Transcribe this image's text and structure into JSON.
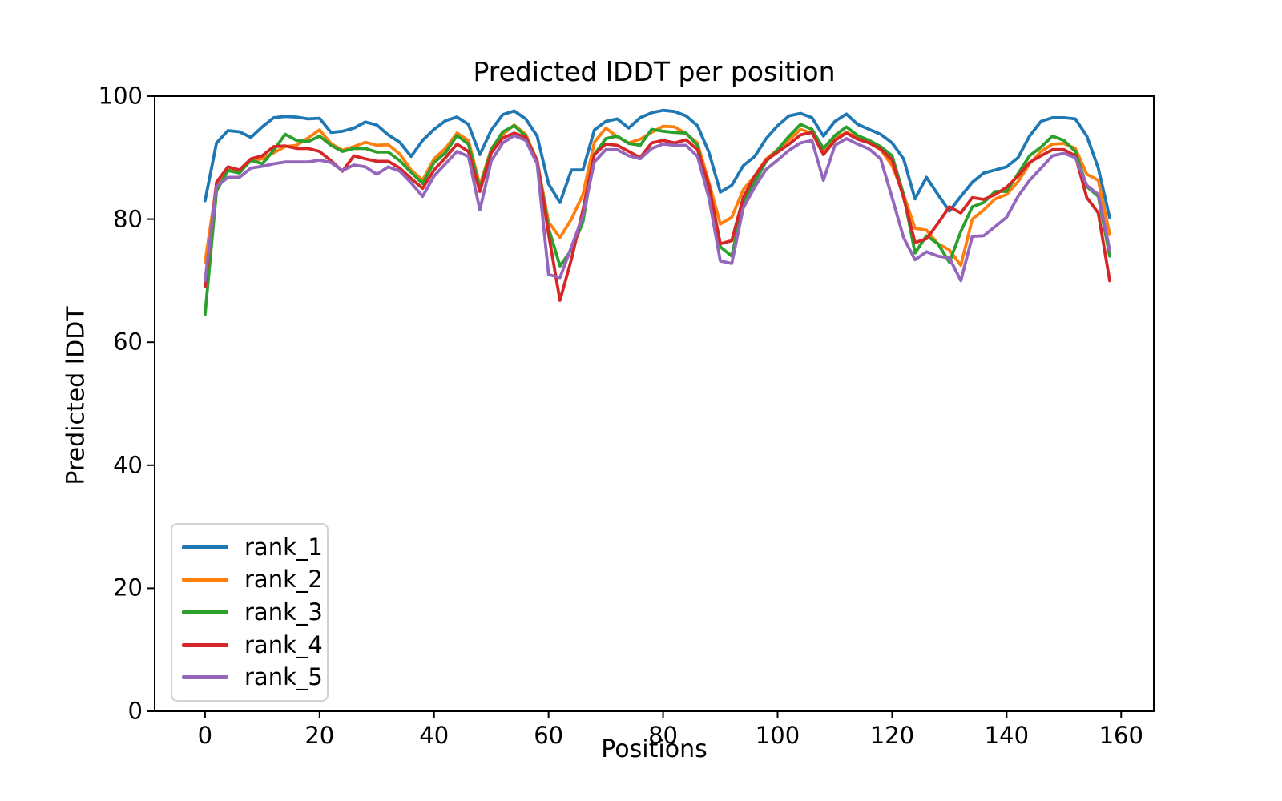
{
  "figure": {
    "title": "Predicted lDDT per position",
    "xlabel": "Positions",
    "ylabel": "Predicted lDDT"
  },
  "chart_data": {
    "type": "line",
    "title": "Predicted lDDT per position",
    "xlabel": "Positions",
    "ylabel": "Predicted lDDT",
    "xlim": [
      -8.8,
      165.7
    ],
    "ylim": [
      0,
      100
    ],
    "xticks": [
      0,
      20,
      40,
      60,
      80,
      100,
      120,
      140,
      160
    ],
    "yticks": [
      0,
      20,
      40,
      60,
      80,
      100
    ],
    "grid": false,
    "legend_position": "lower left",
    "line_width": 3.8,
    "x": [
      0,
      2,
      4,
      6,
      8,
      10,
      12,
      14,
      16,
      18,
      20,
      22,
      24,
      26,
      28,
      30,
      32,
      34,
      36,
      38,
      40,
      42,
      44,
      46,
      48,
      50,
      52,
      54,
      56,
      58,
      60,
      62,
      64,
      66,
      68,
      70,
      72,
      74,
      76,
      78,
      80,
      82,
      84,
      86,
      88,
      90,
      92,
      94,
      96,
      98,
      100,
      102,
      104,
      106,
      108,
      110,
      112,
      114,
      116,
      118,
      120,
      122,
      124,
      126,
      128,
      130,
      132,
      134,
      136,
      138,
      140,
      142,
      144,
      146,
      148,
      150,
      152,
      154,
      156,
      158
    ],
    "series": [
      {
        "name": "rank_1",
        "color": "#1f77b4",
        "values": [
          83.0,
          92.4,
          94.4,
          94.2,
          93.3,
          95.0,
          96.5,
          96.7,
          96.6,
          96.3,
          96.4,
          94.1,
          94.3,
          94.8,
          95.8,
          95.3,
          93.7,
          92.5,
          90.2,
          92.8,
          94.6,
          96.0,
          96.6,
          95.4,
          90.5,
          94.5,
          97.0,
          97.6,
          96.3,
          93.5,
          85.7,
          82.7,
          88.0,
          88.0,
          94.5,
          95.9,
          96.3,
          94.8,
          96.5,
          97.3,
          97.7,
          97.5,
          96.8,
          95.2,
          90.9,
          84.4,
          85.5,
          88.7,
          90.2,
          93.1,
          95.2,
          96.8,
          97.2,
          96.5,
          93.5,
          95.9,
          97.1,
          95.4,
          94.6,
          93.8,
          92.4,
          89.8,
          83.3,
          86.8,
          84.0,
          81.3,
          83.7,
          86.0,
          87.5,
          88.0,
          88.5,
          90.0,
          93.5,
          95.9,
          96.5,
          96.5,
          96.3,
          93.5,
          88.3,
          80.2
        ]
      },
      {
        "name": "rank_2",
        "color": "#ff7f0e",
        "values": [
          73.0,
          85.5,
          88.0,
          88.0,
          89.5,
          89.8,
          90.8,
          91.8,
          92.0,
          93.2,
          94.5,
          92.3,
          91.2,
          91.8,
          92.5,
          92.0,
          92.1,
          90.6,
          88.0,
          86.3,
          89.8,
          91.5,
          94.0,
          92.8,
          85.5,
          91.5,
          93.8,
          95.3,
          93.8,
          89.5,
          79.5,
          77.0,
          80.0,
          84.0,
          92.5,
          94.8,
          93.4,
          92.4,
          93.0,
          94.1,
          95.1,
          95.0,
          93.9,
          92.4,
          86.0,
          79.2,
          80.3,
          84.8,
          87.0,
          89.8,
          91.3,
          92.9,
          94.6,
          94.0,
          91.0,
          93.2,
          94.1,
          93.3,
          92.4,
          91.3,
          88.7,
          84.0,
          78.5,
          78.2,
          76.0,
          75.0,
          72.5,
          80.0,
          81.5,
          83.3,
          84.0,
          86.1,
          89.0,
          91.0,
          92.2,
          92.3,
          91.5,
          87.3,
          86.3,
          77.5
        ]
      },
      {
        "name": "rank_3",
        "color": "#2ca02c",
        "values": [
          64.5,
          84.6,
          87.9,
          87.5,
          89.6,
          89.0,
          91.2,
          93.8,
          92.8,
          92.6,
          93.5,
          92.0,
          91.0,
          91.5,
          91.5,
          90.9,
          90.9,
          89.5,
          87.6,
          85.8,
          89.2,
          90.8,
          93.6,
          92.2,
          85.0,
          91.3,
          94.2,
          95.2,
          93.5,
          89.3,
          78.5,
          72.4,
          75.0,
          79.5,
          90.5,
          93.1,
          93.5,
          92.3,
          92.0,
          94.6,
          94.3,
          94.1,
          94.0,
          92.0,
          84.0,
          75.5,
          74.0,
          82.6,
          86.0,
          89.4,
          91.3,
          93.5,
          95.4,
          94.6,
          91.5,
          93.6,
          95.0,
          93.6,
          92.8,
          91.8,
          90.3,
          84.0,
          74.5,
          77.3,
          76.0,
          73.0,
          78.0,
          82.0,
          82.7,
          84.5,
          84.5,
          87.4,
          90.3,
          91.7,
          93.5,
          92.8,
          91.0,
          85.3,
          83.7,
          74.0
        ]
      },
      {
        "name": "rank_4",
        "color": "#d62728",
        "values": [
          69.0,
          86.0,
          88.5,
          88.0,
          89.8,
          90.3,
          91.8,
          91.9,
          91.5,
          91.5,
          91.0,
          89.5,
          87.8,
          90.3,
          89.8,
          89.4,
          89.4,
          88.3,
          86.6,
          85.0,
          88.0,
          90.0,
          92.2,
          91.0,
          84.5,
          90.8,
          93.2,
          94.0,
          93.3,
          89.5,
          77.5,
          66.8,
          73.5,
          81.5,
          90.5,
          92.2,
          92.0,
          91.0,
          90.0,
          92.4,
          92.8,
          92.4,
          92.9,
          91.3,
          85.5,
          76.0,
          76.5,
          83.5,
          87.0,
          89.6,
          90.9,
          92.2,
          93.7,
          94.1,
          90.5,
          92.8,
          94.0,
          93.0,
          92.4,
          91.4,
          89.6,
          83.5,
          76.2,
          76.8,
          79.3,
          82.0,
          81.0,
          83.5,
          83.2,
          84.0,
          85.2,
          87.0,
          89.2,
          90.3,
          91.3,
          91.3,
          90.3,
          83.5,
          81.0,
          70.0
        ]
      },
      {
        "name": "rank_5",
        "color": "#9467bd",
        "values": [
          70.0,
          85.3,
          86.8,
          86.8,
          88.3,
          88.6,
          89.0,
          89.3,
          89.3,
          89.3,
          89.6,
          89.2,
          87.9,
          88.8,
          88.5,
          87.3,
          88.5,
          87.8,
          85.9,
          83.7,
          87.0,
          89.0,
          91.0,
          90.2,
          81.5,
          89.5,
          92.4,
          93.6,
          92.8,
          89.0,
          71.0,
          70.5,
          75.5,
          80.5,
          89.3,
          91.3,
          91.3,
          90.3,
          89.8,
          91.5,
          92.2,
          92.0,
          92.0,
          90.2,
          83.5,
          73.2,
          72.8,
          81.8,
          85.2,
          88.1,
          89.6,
          91.2,
          92.4,
          92.8,
          86.3,
          92.0,
          93.1,
          92.2,
          91.4,
          89.8,
          83.5,
          77.0,
          73.4,
          74.7,
          74.0,
          73.7,
          70.0,
          77.2,
          77.3,
          78.8,
          80.3,
          83.7,
          86.3,
          88.3,
          90.3,
          90.7,
          90.0,
          85.5,
          84.0,
          75.0
        ]
      }
    ]
  }
}
